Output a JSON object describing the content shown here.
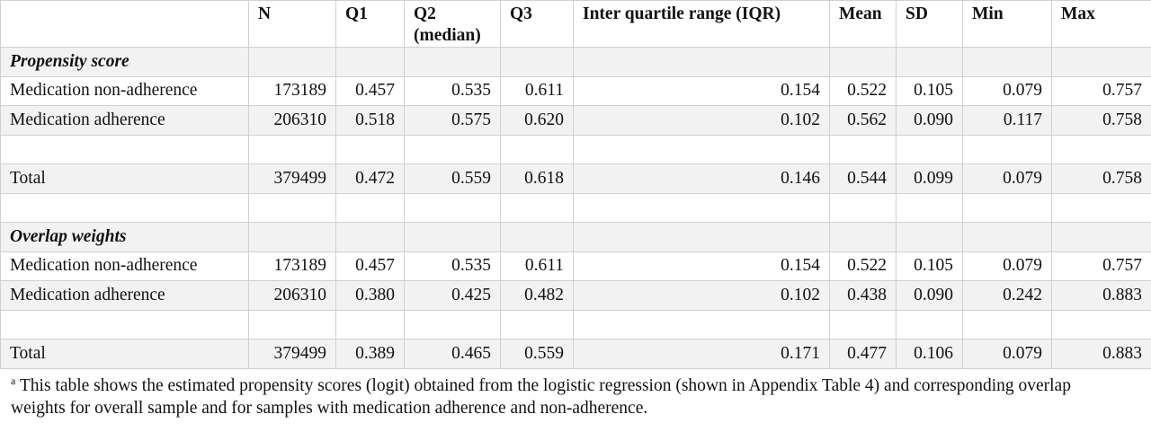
{
  "table": {
    "header": [
      "N",
      "Q1",
      "Q2\n(median)",
      "Q3",
      "Inter quartile range (IQR)",
      "Mean",
      "SD",
      "Min",
      "Max"
    ],
    "sections": [
      {
        "title": "Propensity score",
        "rows": [
          {
            "label": "Medication non-adherence",
            "values": [
              "173189",
              "0.457",
              "0.535",
              "0.611",
              "0.154",
              "0.522",
              "0.105",
              "0.079",
              "0.757"
            ]
          },
          {
            "label": "Medication adherence",
            "values": [
              "206310",
              "0.518",
              "0.575",
              "0.620",
              "0.102",
              "0.562",
              "0.090",
              "0.117",
              "0.758"
            ]
          }
        ],
        "total": {
          "label": "Total",
          "values": [
            "379499",
            "0.472",
            "0.559",
            "0.618",
            "0.146",
            "0.544",
            "0.099",
            "0.079",
            "0.758"
          ]
        }
      },
      {
        "title": "Overlap weights",
        "rows": [
          {
            "label": "Medication non-adherence",
            "values": [
              "173189",
              "0.457",
              "0.535",
              "0.611",
              "0.154",
              "0.522",
              "0.105",
              "0.079",
              "0.757"
            ]
          },
          {
            "label": "Medication adherence",
            "values": [
              "206310",
              "0.380",
              "0.425",
              "0.482",
              "0.102",
              "0.438",
              "0.090",
              "0.242",
              "0.883"
            ]
          }
        ],
        "total": {
          "label": "Total",
          "values": [
            "379499",
            "0.389",
            "0.465",
            "0.559",
            "0.171",
            "0.477",
            "0.106",
            "0.079",
            "0.883"
          ]
        }
      }
    ]
  },
  "footnote": {
    "marker": "a",
    "text": "This table shows the estimated propensity scores (logit) obtained from the logistic regression (shown in Appendix Table 4) and corresponding overlap weights for overall sample and for samples with medication adherence and non-adherence."
  }
}
